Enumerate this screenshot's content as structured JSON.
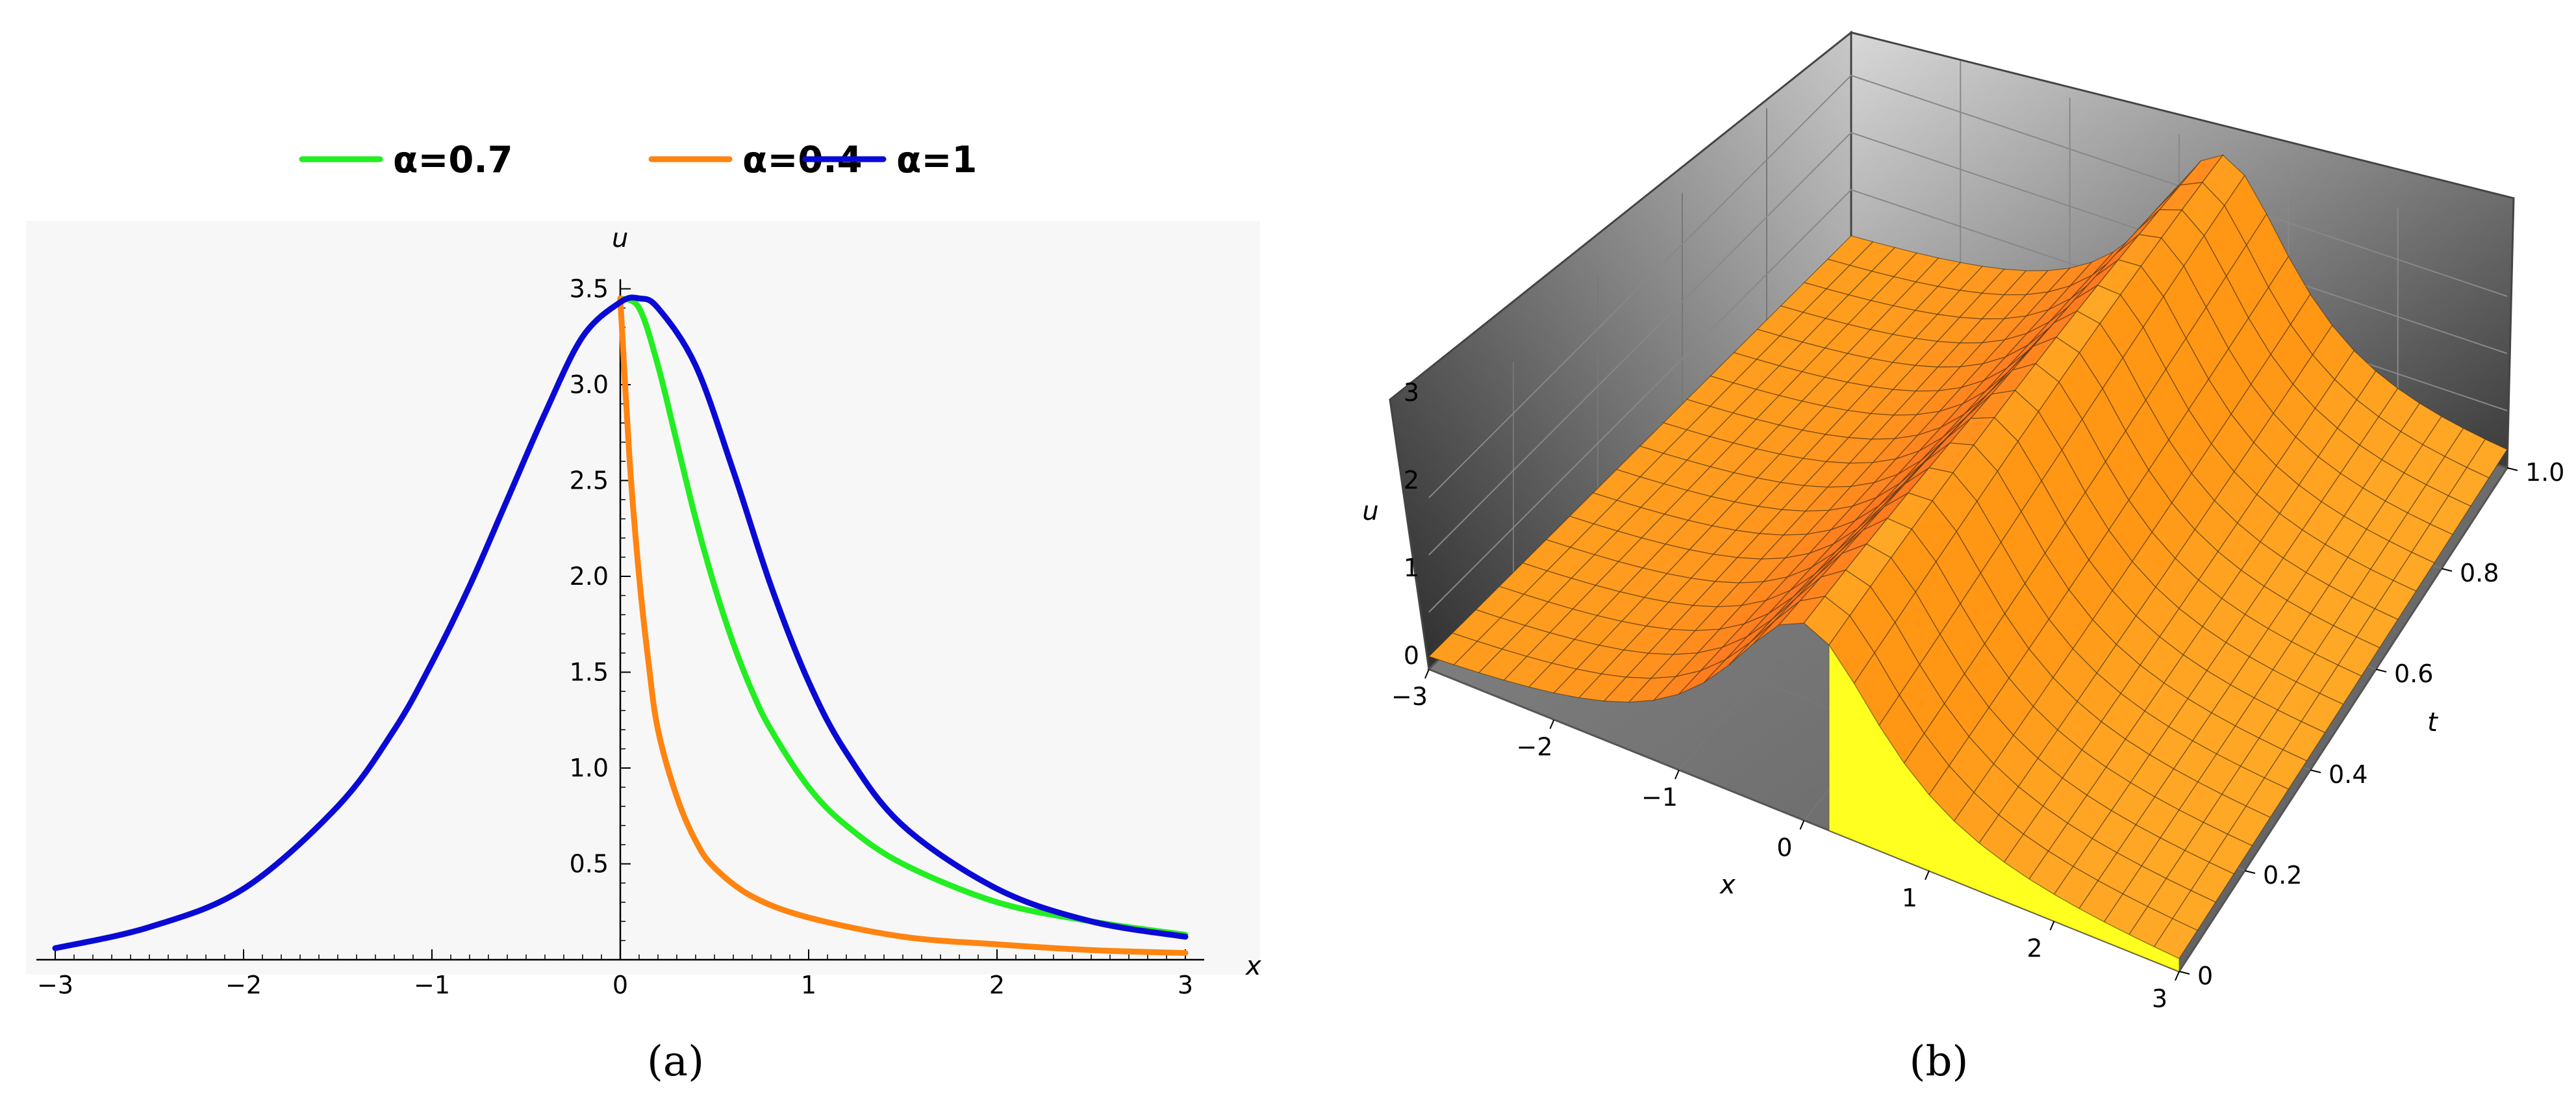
{
  "chart_data": [
    {
      "type": "line",
      "panel": "(a)",
      "xlabel": "x",
      "ylabel": "u",
      "xlim": [
        -3.1,
        3.1
      ],
      "ylim": [
        0,
        3.55
      ],
      "grid": false,
      "legend_position": "top",
      "x_ticks": [
        "−3",
        "−2",
        "−1",
        "0",
        "1",
        "2",
        "3"
      ],
      "y_ticks": [
        "0.5",
        "1.0",
        "1.5",
        "2.0",
        "2.5",
        "3.0",
        "3.5"
      ],
      "series": [
        {
          "name": "α=0.7",
          "color": "#22ee22",
          "x": [
            0,
            0.1,
            0.2,
            0.3,
            0.4,
            0.5,
            0.6,
            0.7,
            0.8,
            1.0,
            1.2,
            1.5,
            2.0,
            2.5,
            3.0
          ],
          "y": [
            3.45,
            3.4,
            3.1,
            2.7,
            2.3,
            1.95,
            1.65,
            1.4,
            1.2,
            0.9,
            0.7,
            0.5,
            0.3,
            0.2,
            0.13
          ]
        },
        {
          "name": "α=0.4",
          "color": "#ff8410",
          "x": [
            0,
            0.05,
            0.1,
            0.15,
            0.2,
            0.3,
            0.4,
            0.5,
            0.7,
            1.0,
            1.5,
            2.0,
            2.5,
            3.0
          ],
          "y": [
            3.45,
            2.6,
            2.0,
            1.55,
            1.2,
            0.85,
            0.62,
            0.48,
            0.33,
            0.22,
            0.12,
            0.08,
            0.05,
            0.035
          ]
        },
        {
          "name": "α=1",
          "color": "#0a0ad6",
          "x": [
            -3.0,
            -2.5,
            -2.0,
            -1.5,
            -1.2,
            -1.0,
            -0.8,
            -0.6,
            -0.4,
            -0.2,
            0.0,
            0.1,
            0.2,
            0.4,
            0.6,
            0.8,
            1.0,
            1.2,
            1.5,
            2.0,
            2.5,
            3.0
          ],
          "y": [
            0.06,
            0.17,
            0.37,
            0.8,
            1.2,
            1.55,
            1.95,
            2.4,
            2.85,
            3.25,
            3.43,
            3.45,
            3.4,
            3.1,
            2.55,
            1.95,
            1.45,
            1.08,
            0.7,
            0.37,
            0.2,
            0.12
          ]
        }
      ]
    },
    {
      "type": "surface3d",
      "panel": "(b)",
      "xlabel": "x",
      "ylabel": "t",
      "zlabel": "u",
      "xlim": [
        -3,
        3
      ],
      "ylim": [
        0,
        1
      ],
      "zlim": [
        0,
        3.5
      ],
      "x_ticks": [
        "−3",
        "−2",
        "−1",
        "0",
        "1",
        "2",
        "3"
      ],
      "y_ticks": [
        "0",
        "0.2",
        "0.4",
        "0.6",
        "0.8",
        "1.0"
      ],
      "z_ticks": [
        "0",
        "1",
        "2",
        "3"
      ],
      "surface_color": "#ff9f10",
      "back_color": "#ffff20",
      "mesh": true
    }
  ],
  "captions": {
    "a": "(a)",
    "b": "(b)"
  }
}
